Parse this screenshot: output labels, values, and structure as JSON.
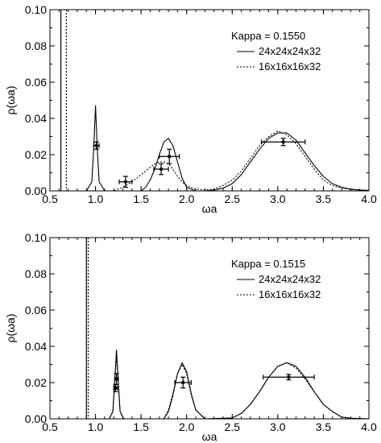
{
  "chart_data": [
    {
      "type": "line",
      "xlabel": "ωa",
      "ylabel": "ρ(ωa)",
      "xlim": [
        0.5,
        4.0
      ],
      "ylim": [
        0.0,
        0.1
      ],
      "xticks": [
        "0.5",
        "1.0",
        "1.5",
        "2.0",
        "2.5",
        "3.0",
        "3.5",
        "4.0"
      ],
      "yticks": [
        "0.00",
        "0.02",
        "0.04",
        "0.06",
        "0.08",
        "0.10"
      ],
      "grid": false,
      "legend_position": "top-right",
      "legend_title": "Kappa = 0.1550",
      "series": [
        {
          "name": "24x24x24x32",
          "style": "solid",
          "x": [
            0.5,
            0.9,
            0.96,
            0.98,
            1.0,
            1.02,
            1.04,
            1.1,
            1.5,
            1.55,
            1.6,
            1.65,
            1.7,
            1.75,
            1.8,
            1.85,
            1.9,
            1.95,
            2.0,
            2.1,
            2.2,
            2.3,
            2.4,
            2.5,
            2.6,
            2.7,
            2.8,
            2.9,
            3.0,
            3.1,
            3.2,
            3.3,
            3.4,
            3.5,
            3.6,
            3.7,
            3.8,
            3.9,
            4.0
          ],
          "y": [
            0.0,
            0.0,
            0.005,
            0.023,
            0.047,
            0.023,
            0.005,
            0.0,
            0.0,
            0.002,
            0.006,
            0.012,
            0.02,
            0.027,
            0.029,
            0.025,
            0.016,
            0.007,
            0.002,
            0.0,
            0.0,
            0.0005,
            0.0015,
            0.004,
            0.009,
            0.016,
            0.023,
            0.029,
            0.032,
            0.032,
            0.028,
            0.021,
            0.014,
            0.008,
            0.004,
            0.002,
            0.001,
            0.0005,
            0.0003
          ]
        },
        {
          "name": "16x16x16x32",
          "style": "dotted",
          "x": [
            0.5,
            1.0,
            1.2,
            1.3,
            1.4,
            1.5,
            1.6,
            1.65,
            1.7,
            1.75,
            1.8,
            1.85,
            1.9,
            1.95,
            2.0,
            2.1,
            2.2,
            2.3,
            2.4,
            2.5,
            2.6,
            2.7,
            2.8,
            2.9,
            3.0,
            3.1,
            3.2,
            3.3,
            3.4,
            3.5,
            3.6,
            3.7,
            3.8,
            3.9,
            4.0
          ],
          "y": [
            0.0,
            0.0,
            0.0,
            0.002,
            0.005,
            0.009,
            0.013,
            0.015,
            0.016,
            0.016,
            0.015,
            0.012,
            0.008,
            0.005,
            0.003,
            0.001,
            0.0005,
            0.001,
            0.003,
            0.006,
            0.011,
            0.018,
            0.025,
            0.03,
            0.033,
            0.031,
            0.026,
            0.019,
            0.012,
            0.006,
            0.003,
            0.0015,
            0.0008,
            0.0004,
            0.0002
          ]
        }
      ],
      "vlines": [
        {
          "x": 0.62,
          "style": "solid"
        },
        {
          "x": 0.68,
          "style": "dotted"
        }
      ],
      "points": [
        {
          "x": 1.01,
          "y": 0.025,
          "xerr": 0.03,
          "yerr": 0.002
        },
        {
          "x": 1.33,
          "y": 0.005,
          "xerr": 0.07,
          "yerr": 0.003
        },
        {
          "x": 1.72,
          "y": 0.012,
          "xerr": 0.08,
          "yerr": 0.003
        },
        {
          "x": 1.81,
          "y": 0.019,
          "xerr": 0.11,
          "yerr": 0.004
        },
        {
          "x": 3.06,
          "y": 0.027,
          "xerr": 0.24,
          "yerr": 0.002
        }
      ]
    },
    {
      "type": "line",
      "xlabel": "ωa",
      "ylabel": "ρ(ωa)",
      "xlim": [
        0.5,
        4.0
      ],
      "ylim": [
        0.0,
        0.1
      ],
      "xticks": [
        "0.5",
        "1.0",
        "1.5",
        "2.0",
        "2.5",
        "3.0",
        "3.5",
        "4.0"
      ],
      "yticks": [
        "0.00",
        "0.02",
        "0.04",
        "0.06",
        "0.08",
        "0.10"
      ],
      "grid": false,
      "legend_position": "top-right",
      "legend_title": "Kappa = 0.1515",
      "series": [
        {
          "name": "24x24x24x32",
          "style": "solid",
          "x": [
            0.5,
            1.15,
            1.19,
            1.21,
            1.23,
            1.25,
            1.27,
            1.31,
            1.75,
            1.8,
            1.85,
            1.9,
            1.95,
            2.0,
            2.05,
            2.1,
            2.2,
            2.5,
            2.6,
            2.7,
            2.8,
            2.9,
            3.0,
            3.1,
            3.2,
            3.3,
            3.4,
            3.5,
            3.6,
            3.7,
            3.8,
            4.0
          ],
          "y": [
            0.0,
            0.0,
            0.004,
            0.02,
            0.038,
            0.02,
            0.004,
            0.0,
            0.0,
            0.004,
            0.013,
            0.025,
            0.031,
            0.026,
            0.014,
            0.005,
            0.0,
            0.0005,
            0.003,
            0.008,
            0.015,
            0.023,
            0.029,
            0.031,
            0.029,
            0.023,
            0.015,
            0.008,
            0.004,
            0.001,
            0.0003,
            0.0
          ]
        },
        {
          "name": "16x16x16x32",
          "style": "dotted",
          "x": [
            0.5,
            1.15,
            1.19,
            1.21,
            1.23,
            1.25,
            1.27,
            1.31,
            1.75,
            1.8,
            1.85,
            1.9,
            1.95,
            2.0,
            2.05,
            2.1,
            2.2,
            2.5,
            2.6,
            2.7,
            2.8,
            2.9,
            3.0,
            3.1,
            3.2,
            3.3,
            3.4,
            3.5,
            3.6,
            3.7,
            3.8,
            4.0
          ],
          "y": [
            0.0,
            0.0,
            0.004,
            0.019,
            0.035,
            0.019,
            0.004,
            0.0,
            0.0,
            0.005,
            0.014,
            0.025,
            0.03,
            0.025,
            0.013,
            0.005,
            0.0,
            0.0005,
            0.003,
            0.008,
            0.015,
            0.023,
            0.029,
            0.031,
            0.028,
            0.022,
            0.015,
            0.008,
            0.004,
            0.001,
            0.0003,
            0.0
          ]
        }
      ],
      "vlines": [
        {
          "x": 0.9,
          "style": "solid"
        },
        {
          "x": 0.92,
          "style": "dotted"
        }
      ],
      "points": [
        {
          "x": 1.23,
          "y": 0.022,
          "xerr": 0.02,
          "yerr": 0.003
        },
        {
          "x": 1.22,
          "y": 0.017,
          "xerr": 0.02,
          "yerr": 0.002
        },
        {
          "x": 1.96,
          "y": 0.02,
          "xerr": 0.09,
          "yerr": 0.003
        },
        {
          "x": 3.12,
          "y": 0.023,
          "xerr": 0.28,
          "yerr": 0.0015
        }
      ]
    }
  ]
}
